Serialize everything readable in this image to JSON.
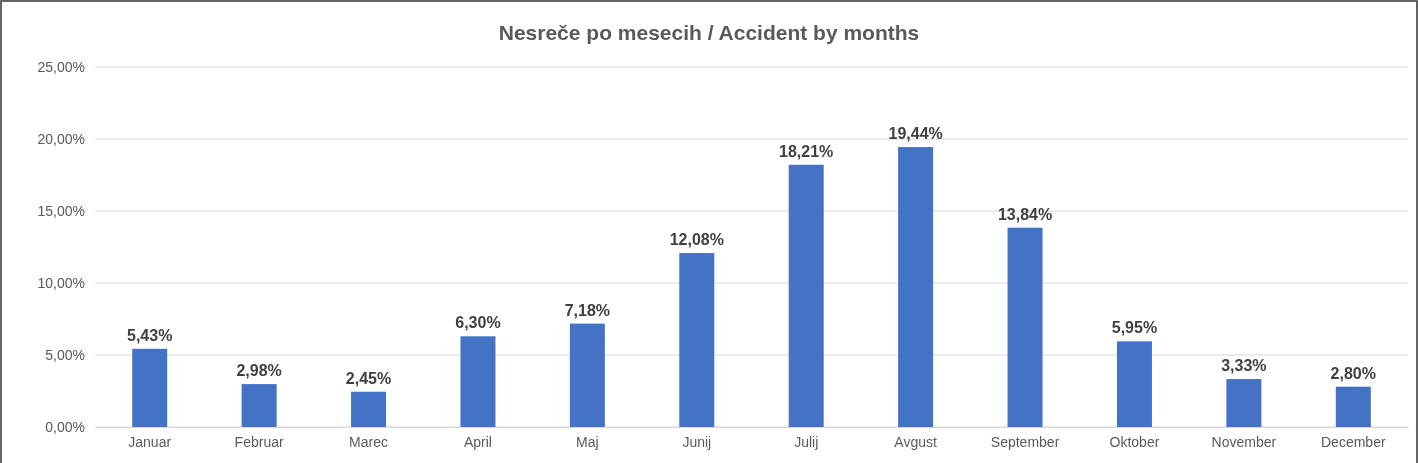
{
  "chart_data": {
    "type": "bar",
    "title": "Nesreče po mesecih / Accident by months",
    "categories": [
      "Januar",
      "Februar",
      "Marec",
      "April",
      "Maj",
      "Junij",
      "Julij",
      "Avgust",
      "September",
      "Oktober",
      "November",
      "December"
    ],
    "values": [
      5.43,
      2.98,
      2.45,
      6.3,
      7.18,
      12.08,
      18.21,
      19.44,
      13.84,
      5.95,
      3.33,
      2.8
    ],
    "value_labels": [
      "5,43%",
      "2,98%",
      "2,45%",
      "6,30%",
      "7,18%",
      "12,08%",
      "18,21%",
      "19,44%",
      "13,84%",
      "5,95%",
      "3,33%",
      "2,80%"
    ],
    "color": "#4472c4",
    "ylim": [
      0,
      25
    ],
    "yticks": [
      {
        "value": 0,
        "label": "0,00%"
      },
      {
        "value": 5,
        "label": "5,00%"
      },
      {
        "value": 10,
        "label": "10,00%"
      },
      {
        "value": 15,
        "label": "15,00%"
      },
      {
        "value": 20,
        "label": "20,00%"
      },
      {
        "value": 25,
        "label": "25,00%"
      }
    ],
    "grid": "y"
  }
}
